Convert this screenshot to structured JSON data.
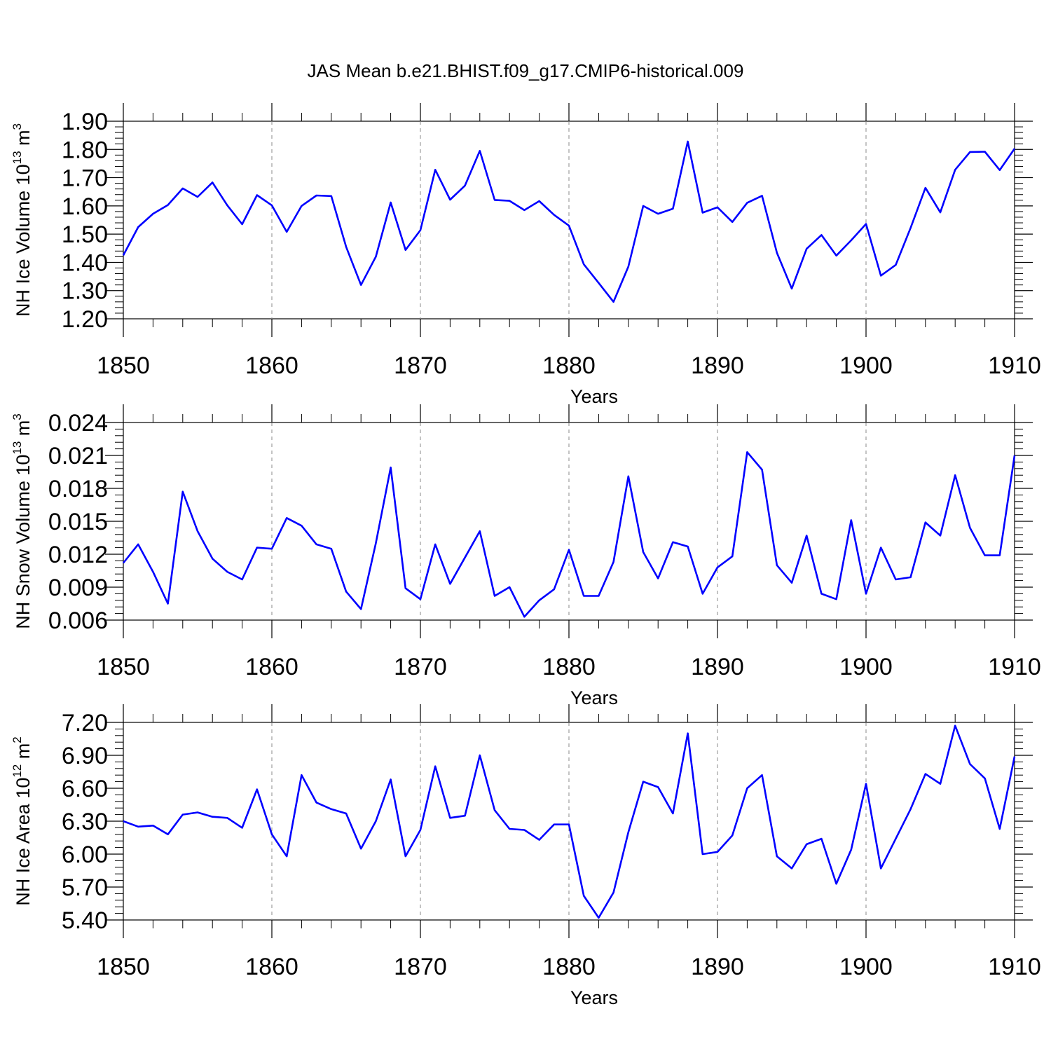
{
  "title": "JAS Mean b.e21.BHIST.f09_g17.CMIP6-historical.009",
  "line_color": "#0000ff",
  "chart_data": [
    {
      "type": "line",
      "ylabel": "NH Ice Volume 10",
      "ylabel_exp": "13",
      "ylabel_unit": " m",
      "ylabel_unit_exp": "3",
      "xlabel": "Years",
      "xlim": [
        1850,
        1910
      ],
      "ylim": [
        1.2,
        1.9
      ],
      "xticks": [
        "1850",
        "1860",
        "1870",
        "1880",
        "1890",
        "1900",
        "1910"
      ],
      "yticks": [
        "1.20",
        "1.30",
        "1.40",
        "1.50",
        "1.60",
        "1.70",
        "1.80",
        "1.90"
      ],
      "x": [
        1850,
        1851,
        1852,
        1853,
        1854,
        1855,
        1856,
        1857,
        1858,
        1859,
        1860,
        1861,
        1862,
        1863,
        1864,
        1865,
        1866,
        1867,
        1868,
        1869,
        1870,
        1871,
        1872,
        1873,
        1874,
        1875,
        1876,
        1877,
        1878,
        1879,
        1880,
        1881,
        1882,
        1883,
        1884,
        1885,
        1886,
        1887,
        1888,
        1889,
        1890,
        1891,
        1892,
        1893,
        1894,
        1895,
        1896,
        1897,
        1898,
        1899,
        1900,
        1901,
        1902,
        1903,
        1904,
        1905,
        1906,
        1907,
        1908,
        1909,
        1910
      ],
      "series": [
        {
          "name": "NH Ice Volume",
          "values": [
            1.425,
            1.525,
            1.572,
            1.603,
            1.662,
            1.632,
            1.683,
            1.602,
            1.535,
            1.638,
            1.602,
            1.508,
            1.6,
            1.637,
            1.635,
            1.455,
            1.32,
            1.42,
            1.612,
            1.444,
            1.514,
            1.728,
            1.622,
            1.672,
            1.795,
            1.621,
            1.618,
            1.585,
            1.617,
            1.568,
            1.53,
            1.393,
            1.327,
            1.26,
            1.385,
            1.6,
            1.572,
            1.59,
            1.828,
            1.576,
            1.595,
            1.543,
            1.611,
            1.636,
            1.434,
            1.307,
            1.448,
            1.497,
            1.424,
            1.478,
            1.536,
            1.353,
            1.391,
            1.522,
            1.664,
            1.577,
            1.728,
            1.791,
            1.792,
            1.727,
            1.803
          ]
        }
      ]
    },
    {
      "type": "line",
      "ylabel": "NH Snow Volume 10",
      "ylabel_exp": "13",
      "ylabel_unit": " m",
      "ylabel_unit_exp": "3",
      "xlabel": "Years",
      "xlim": [
        1850,
        1910
      ],
      "ylim": [
        0.006,
        0.024
      ],
      "xticks": [
        "1850",
        "1860",
        "1870",
        "1880",
        "1890",
        "1900",
        "1910"
      ],
      "yticks": [
        "0.006",
        "0.009",
        "0.012",
        "0.015",
        "0.018",
        "0.021",
        "0.024"
      ],
      "x": [
        1850,
        1851,
        1852,
        1853,
        1854,
        1855,
        1856,
        1857,
        1858,
        1859,
        1860,
        1861,
        1862,
        1863,
        1864,
        1865,
        1866,
        1867,
        1868,
        1869,
        1870,
        1871,
        1872,
        1873,
        1874,
        1875,
        1876,
        1877,
        1878,
        1879,
        1880,
        1881,
        1882,
        1883,
        1884,
        1885,
        1886,
        1887,
        1888,
        1889,
        1890,
        1891,
        1892,
        1893,
        1894,
        1895,
        1896,
        1897,
        1898,
        1899,
        1900,
        1901,
        1902,
        1903,
        1904,
        1905,
        1906,
        1907,
        1908,
        1909,
        1910
      ],
      "series": [
        {
          "name": "NH Snow Volume",
          "values": [
            0.0112,
            0.0129,
            0.0104,
            0.0075,
            0.0177,
            0.0141,
            0.0116,
            0.0104,
            0.0097,
            0.0126,
            0.0125,
            0.0153,
            0.0146,
            0.0129,
            0.0125,
            0.0086,
            0.007,
            0.013,
            0.0199,
            0.0089,
            0.0079,
            0.0129,
            0.0093,
            0.0117,
            0.0141,
            0.0082,
            0.009,
            0.0063,
            0.0078,
            0.0088,
            0.0124,
            0.0082,
            0.0082,
            0.0113,
            0.0191,
            0.0122,
            0.0098,
            0.0131,
            0.0127,
            0.0084,
            0.0108,
            0.0118,
            0.0213,
            0.0197,
            0.011,
            0.0094,
            0.0137,
            0.0084,
            0.0079,
            0.0151,
            0.0084,
            0.0126,
            0.0097,
            0.0099,
            0.0149,
            0.0137,
            0.0192,
            0.0144,
            0.0119,
            0.0119,
            0.021
          ]
        }
      ]
    },
    {
      "type": "line",
      "ylabel": "NH Ice Area 10",
      "ylabel_exp": "12",
      "ylabel_unit": " m",
      "ylabel_unit_exp": "2",
      "xlabel": "Years",
      "xlim": [
        1850,
        1910
      ],
      "ylim": [
        5.4,
        7.2
      ],
      "xticks": [
        "1850",
        "1860",
        "1870",
        "1880",
        "1890",
        "1900",
        "1910"
      ],
      "yticks": [
        "5.40",
        "5.70",
        "6.00",
        "6.30",
        "6.60",
        "6.90",
        "7.20"
      ],
      "x": [
        1850,
        1851,
        1852,
        1853,
        1854,
        1855,
        1856,
        1857,
        1858,
        1859,
        1860,
        1861,
        1862,
        1863,
        1864,
        1865,
        1866,
        1867,
        1868,
        1869,
        1870,
        1871,
        1872,
        1873,
        1874,
        1875,
        1876,
        1877,
        1878,
        1879,
        1880,
        1881,
        1882,
        1883,
        1884,
        1885,
        1886,
        1887,
        1888,
        1889,
        1890,
        1891,
        1892,
        1893,
        1894,
        1895,
        1896,
        1897,
        1898,
        1899,
        1900,
        1901,
        1902,
        1903,
        1904,
        1905,
        1906,
        1907,
        1908,
        1909,
        1910
      ],
      "series": [
        {
          "name": "NH Ice Area",
          "values": [
            6.3,
            6.25,
            6.26,
            6.18,
            6.36,
            6.38,
            6.34,
            6.33,
            6.24,
            6.59,
            6.18,
            5.98,
            6.72,
            6.47,
            6.41,
            6.37,
            6.05,
            6.3,
            6.68,
            5.98,
            6.22,
            6.8,
            6.33,
            6.35,
            6.9,
            6.4,
            6.23,
            6.22,
            6.13,
            6.27,
            6.27,
            5.62,
            5.42,
            5.65,
            6.2,
            6.66,
            6.61,
            6.37,
            7.1,
            6.0,
            6.02,
            6.17,
            6.6,
            6.72,
            5.98,
            5.87,
            6.09,
            6.14,
            5.73,
            6.04,
            6.64,
            5.87,
            6.14,
            6.41,
            6.73,
            6.64,
            7.17,
            6.82,
            6.69,
            6.23,
            6.89
          ]
        }
      ]
    }
  ]
}
